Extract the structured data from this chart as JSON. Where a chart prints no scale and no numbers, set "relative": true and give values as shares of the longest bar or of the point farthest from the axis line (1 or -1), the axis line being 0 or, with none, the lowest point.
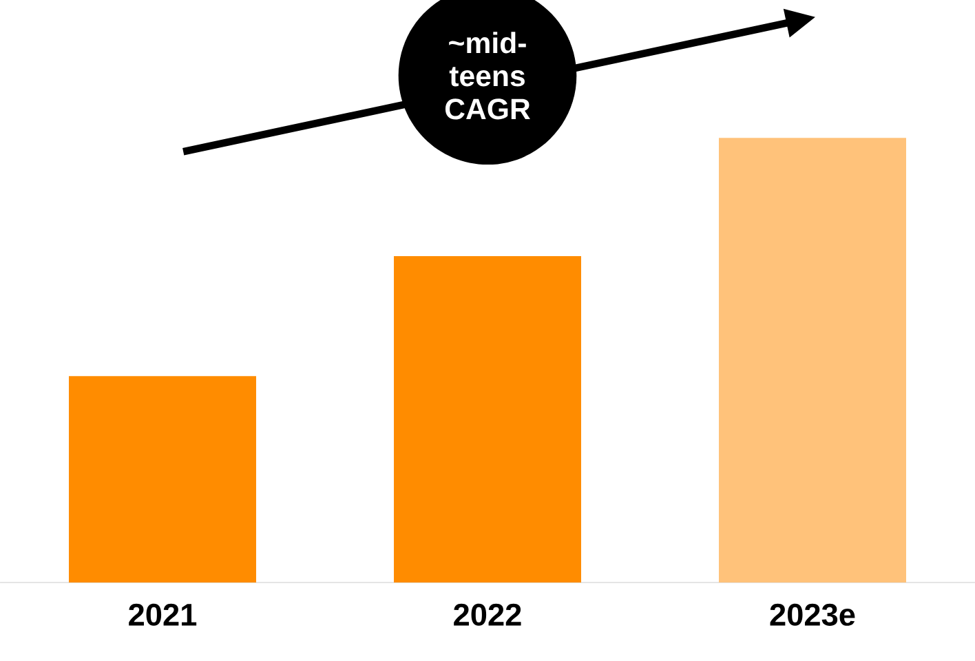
{
  "chart_data": {
    "type": "bar",
    "relative": true,
    "categories": [
      "2021",
      "2022",
      "2023e"
    ],
    "values": [
      0.464,
      0.734,
      1.0
    ],
    "colors": [
      "#ff8c00",
      "#ff8c00",
      "#ffc27a"
    ],
    "annotations": [
      "~mid-teens CAGR"
    ]
  }
}
